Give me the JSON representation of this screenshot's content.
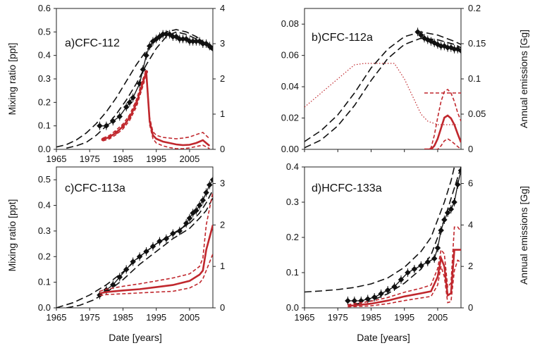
{
  "figure": {
    "xlabel": "Date [years]",
    "ylabel_left": "Mixing ratio [ppt]",
    "ylabel_right": "Annual emissions [Gg]"
  },
  "colors": {
    "observations": "#111111",
    "model": "#111111",
    "emissions": "#c0272d"
  },
  "chart_data": [
    {
      "type": "line",
      "title": "a)CFC-112",
      "xlim": [
        1965,
        2012
      ],
      "xticks": [
        1965,
        1975,
        1985,
        1995,
        2005
      ],
      "ylim": [
        0,
        0.6
      ],
      "yticks": [
        "0.0",
        "0.1",
        "0.2",
        "0.3",
        "0.4",
        "0.5",
        "0.6"
      ],
      "y2lim": [
        0,
        4
      ],
      "y2ticks": [
        "0",
        "1",
        "2",
        "3",
        "4"
      ],
      "series": [
        {
          "style": "obs",
          "axis": "left",
          "x": [
            1978,
            1980,
            1982,
            1984,
            1986,
            1987,
            1988,
            1990,
            1991,
            1992,
            1993,
            1994,
            1995,
            1996,
            1997,
            1998,
            1999,
            2000,
            2001,
            2002,
            2003,
            2004,
            2005,
            2006,
            2007,
            2008,
            2009,
            2010,
            2011,
            2012
          ],
          "y": [
            0.1,
            0.1,
            0.12,
            0.14,
            0.18,
            0.2,
            0.22,
            0.28,
            0.34,
            0.4,
            0.44,
            0.46,
            0.47,
            0.48,
            0.49,
            0.49,
            0.49,
            0.48,
            0.48,
            0.47,
            0.47,
            0.47,
            0.46,
            0.46,
            0.46,
            0.46,
            0.45,
            0.45,
            0.44,
            0.43
          ]
        },
        {
          "style": "model",
          "axis": "left",
          "x": [
            1965,
            1968,
            1971,
            1974,
            1977,
            1980,
            1983,
            1986,
            1989,
            1992,
            1995,
            1998,
            2001,
            2004,
            2007,
            2010,
            2012
          ],
          "y": [
            0.01,
            0.02,
            0.04,
            0.07,
            0.11,
            0.16,
            0.22,
            0.29,
            0.36,
            0.42,
            0.47,
            0.5,
            0.51,
            0.5,
            0.48,
            0.45,
            0.43
          ]
        },
        {
          "style": "model",
          "axis": "left",
          "x": [
            1968,
            1971,
            1974,
            1977,
            1980,
            1983,
            1986,
            1989,
            1992,
            1995,
            1998,
            2001,
            2004,
            2007,
            2010,
            2012
          ],
          "y": [
            0.005,
            0.015,
            0.03,
            0.06,
            0.1,
            0.15,
            0.21,
            0.28,
            0.36,
            0.43,
            0.48,
            0.5,
            0.49,
            0.47,
            0.44,
            0.42
          ]
        },
        {
          "style": "emis",
          "axis": "right",
          "x": [
            1979,
            1981,
            1983,
            1985,
            1987,
            1989,
            1991,
            1992,
            1993,
            1994,
            1995,
            1997,
            1999,
            2001,
            2003,
            2005,
            2007,
            2009,
            2011
          ],
          "y": [
            0.28,
            0.35,
            0.48,
            0.65,
            0.9,
            1.3,
            1.9,
            2.2,
            0.8,
            0.4,
            0.3,
            0.22,
            0.18,
            0.14,
            0.12,
            0.13,
            0.18,
            0.26,
            0.1
          ]
        },
        {
          "style": "emis_unc",
          "axis": "right",
          "x": [
            1979,
            1981,
            1983,
            1985,
            1987,
            1989,
            1991,
            1992,
            1993,
            1994,
            1995,
            1997,
            1999,
            2001,
            2003,
            2005,
            2007,
            2009,
            2011
          ],
          "y": [
            0.32,
            0.4,
            0.55,
            0.72,
            0.98,
            1.4,
            2.0,
            2.25,
            0.9,
            0.5,
            0.4,
            0.34,
            0.32,
            0.3,
            0.32,
            0.35,
            0.42,
            0.48,
            0.3
          ]
        },
        {
          "style": "emis_unc",
          "axis": "right",
          "x": [
            1979,
            1981,
            1983,
            1985,
            1987,
            1989,
            1991,
            1992,
            1993,
            1994,
            1995,
            1997,
            1999,
            2001,
            2003,
            2005,
            2007,
            2009,
            2011
          ],
          "y": [
            0.24,
            0.3,
            0.42,
            0.58,
            0.82,
            1.2,
            1.8,
            2.15,
            0.7,
            0.3,
            0.18,
            0.1,
            0.05,
            0.02,
            0.02,
            0.04,
            0.08,
            0.12,
            0.02
          ]
        }
      ]
    },
    {
      "type": "line",
      "title": "b)CFC-112a",
      "xlim": [
        1965,
        2012
      ],
      "xticks": [],
      "ylim": [
        0,
        0.09
      ],
      "yticks": [
        "0.00",
        "0.02",
        "0.04",
        "0.06",
        "0.08"
      ],
      "y2lim": [
        0,
        0.2
      ],
      "y2ticks": [
        "0",
        "0.05",
        "0.1",
        "0.15",
        "0.2"
      ],
      "series": [
        {
          "style": "obs",
          "axis": "left",
          "x": [
            1999,
            2000,
            2001,
            2002,
            2003,
            2004,
            2005,
            2006,
            2007,
            2008,
            2009,
            2010,
            2011,
            2012
          ],
          "y": [
            0.075,
            0.073,
            0.071,
            0.07,
            0.069,
            0.068,
            0.067,
            0.066,
            0.066,
            0.065,
            0.065,
            0.064,
            0.064,
            0.063
          ]
        },
        {
          "style": "model",
          "axis": "left",
          "x": [
            1965,
            1970,
            1975,
            1980,
            1985,
            1990,
            1995,
            2000,
            2005,
            2010,
            2012
          ],
          "y": [
            0.005,
            0.012,
            0.022,
            0.036,
            0.052,
            0.064,
            0.072,
            0.075,
            0.073,
            0.069,
            0.067
          ]
        },
        {
          "style": "model",
          "axis": "left",
          "x": [
            1965,
            1970,
            1975,
            1980,
            1985,
            1990,
            1995,
            2000,
            2005,
            2010,
            2012
          ],
          "y": [
            0.001,
            0.006,
            0.015,
            0.028,
            0.044,
            0.058,
            0.067,
            0.071,
            0.07,
            0.067,
            0.065
          ]
        },
        {
          "style": "dotted",
          "axis": "right",
          "x": [
            1965,
            1970,
            1975,
            1980,
            1983,
            1985,
            1992,
            1995,
            1998,
            2000,
            2002,
            2005,
            2008,
            2010,
            2011
          ],
          "y": [
            0.06,
            0.08,
            0.1,
            0.12,
            0.122,
            0.122,
            0.122,
            0.1,
            0.07,
            0.05,
            0.04,
            0.035,
            0.035,
            0.035,
            0.035
          ]
        },
        {
          "style": "emis",
          "axis": "right",
          "x": [
            2001,
            2002,
            2003,
            2004,
            2005,
            2006,
            2007,
            2008,
            2009,
            2010,
            2011,
            2012
          ],
          "y": [
            0.0,
            0.0,
            0.0,
            0.005,
            0.015,
            0.03,
            0.045,
            0.048,
            0.044,
            0.035,
            0.022,
            0.01
          ]
        },
        {
          "style": "emis_unc",
          "axis": "right",
          "x": [
            2001,
            2002,
            2003,
            2004,
            2005,
            2006,
            2007,
            2008,
            2009,
            2010,
            2011,
            2012
          ],
          "y": [
            0.0,
            0.0,
            0.002,
            0.02,
            0.045,
            0.068,
            0.082,
            0.085,
            0.08,
            0.068,
            0.052,
            0.04
          ]
        },
        {
          "style": "emis_unc",
          "axis": "right",
          "x": [
            2001,
            2002,
            2003,
            2004,
            2005,
            2006,
            2007,
            2008,
            2009,
            2010,
            2011,
            2012
          ],
          "y": [
            0.0,
            0.0,
            0.0,
            0.0,
            0.0,
            0.005,
            0.012,
            0.015,
            0.012,
            0.008,
            0.004,
            0.0
          ]
        },
        {
          "style": "emis_unc",
          "axis": "right",
          "x": [
            2001,
            2004,
            2007,
            2010,
            2012
          ],
          "y": [
            0.08,
            0.08,
            0.08,
            0.08,
            0.08
          ]
        }
      ]
    },
    {
      "type": "line",
      "title": "c)CFC-113a",
      "xlim": [
        1965,
        2012
      ],
      "xticks": [
        "1965",
        "1975",
        "1985",
        "1995",
        "2005"
      ],
      "ylim": [
        0,
        0.55
      ],
      "yticks": [
        "0.0",
        "0.1",
        "0.2",
        "0.3",
        "0.4",
        "0.5"
      ],
      "y2lim": [
        0,
        3.4
      ],
      "y2ticks": [
        "0",
        "1",
        "2",
        "3"
      ],
      "series": [
        {
          "style": "obs",
          "axis": "left",
          "x": [
            1978,
            1980,
            1982,
            1984,
            1986,
            1988,
            1990,
            1992,
            1994,
            1996,
            1998,
            2000,
            2002,
            2004,
            2005,
            2006,
            2007,
            2008,
            2009,
            2010,
            2011,
            2012
          ],
          "y": [
            0.05,
            0.07,
            0.09,
            0.12,
            0.15,
            0.18,
            0.2,
            0.22,
            0.24,
            0.26,
            0.27,
            0.29,
            0.3,
            0.33,
            0.35,
            0.37,
            0.38,
            0.4,
            0.42,
            0.45,
            0.48,
            0.5
          ]
        },
        {
          "style": "model",
          "axis": "left",
          "x": [
            1965,
            1970,
            1975,
            1980,
            1985,
            1990,
            1995,
            2000,
            2005,
            2008,
            2010,
            2012
          ],
          "y": [
            0.0,
            0.02,
            0.05,
            0.09,
            0.14,
            0.2,
            0.25,
            0.29,
            0.33,
            0.37,
            0.41,
            0.46
          ]
        },
        {
          "style": "model",
          "axis": "left",
          "x": [
            1968,
            1972,
            1976,
            1980,
            1985,
            1990,
            1995,
            2000,
            2005,
            2008,
            2010,
            2012
          ],
          "y": [
            0.0,
            0.01,
            0.03,
            0.06,
            0.11,
            0.17,
            0.22,
            0.27,
            0.31,
            0.35,
            0.38,
            0.43
          ]
        },
        {
          "style": "emis",
          "axis": "right",
          "x": [
            1978,
            1980,
            1985,
            1990,
            1995,
            2000,
            2005,
            2008,
            2009,
            2010,
            2011,
            2012
          ],
          "y": [
            0.35,
            0.38,
            0.42,
            0.45,
            0.5,
            0.55,
            0.65,
            0.8,
            0.9,
            1.4,
            1.7,
            2.0
          ]
        },
        {
          "style": "emis_unc",
          "axis": "right",
          "x": [
            1978,
            1980,
            1985,
            1990,
            1995,
            2000,
            2005,
            2008,
            2009,
            2010,
            2011,
            2012
          ],
          "y": [
            0.4,
            0.45,
            0.52,
            0.58,
            0.65,
            0.72,
            0.82,
            1.0,
            1.2,
            2.0,
            2.4,
            2.8
          ]
        },
        {
          "style": "emis_unc",
          "axis": "right",
          "x": [
            1978,
            1980,
            1985,
            1990,
            1995,
            2000,
            2005,
            2008,
            2009,
            2010,
            2011,
            2012
          ],
          "y": [
            0.3,
            0.32,
            0.34,
            0.36,
            0.38,
            0.4,
            0.48,
            0.6,
            0.7,
            0.9,
            1.1,
            1.3
          ]
        }
      ]
    },
    {
      "type": "line",
      "title": "d)HCFC-133a",
      "xlim": [
        1965,
        2012
      ],
      "xticks": [
        "1965",
        "1975",
        "1985",
        "1995",
        "2005"
      ],
      "ylim": [
        0,
        0.4
      ],
      "yticks": [
        "0.0",
        "0.1",
        "0.2",
        "0.3",
        "0.4"
      ],
      "y2lim": [
        0,
        6.8
      ],
      "y2ticks": [
        "0",
        "2",
        "4",
        "6"
      ],
      "series": [
        {
          "style": "obs",
          "axis": "left",
          "x": [
            1978,
            1980,
            1982,
            1984,
            1986,
            1988,
            1990,
            1992,
            1994,
            1996,
            1998,
            2000,
            2002,
            2004,
            2005,
            2006,
            2007,
            2008,
            2009,
            2010,
            2011,
            2012
          ],
          "y": [
            0.02,
            0.02,
            0.02,
            0.025,
            0.03,
            0.04,
            0.05,
            0.06,
            0.08,
            0.1,
            0.11,
            0.12,
            0.13,
            0.14,
            0.17,
            0.22,
            0.25,
            0.27,
            0.28,
            0.3,
            0.35,
            0.39
          ]
        },
        {
          "style": "model",
          "axis": "left",
          "x": [
            1965,
            1970,
            1975,
            1980,
            1985,
            1990,
            1995,
            2000,
            2003,
            2005,
            2007,
            2009,
            2010
          ],
          "y": [
            0.045,
            0.048,
            0.052,
            0.058,
            0.068,
            0.085,
            0.115,
            0.16,
            0.2,
            0.25,
            0.3,
            0.36,
            0.4
          ]
        },
        {
          "style": "model",
          "axis": "left",
          "x": [
            1980,
            1985,
            1990,
            1995,
            2000,
            2003,
            2005,
            2007,
            2009,
            2011,
            2012
          ],
          "y": [
            0.01,
            0.02,
            0.04,
            0.07,
            0.11,
            0.15,
            0.2,
            0.25,
            0.31,
            0.37,
            0.4
          ]
        },
        {
          "style": "emis",
          "axis": "right",
          "x": [
            1978,
            1980,
            1985,
            1990,
            1995,
            2000,
            2003,
            2005,
            2006,
            2007,
            2008,
            2009,
            2010,
            2011,
            2012
          ],
          "y": [
            0.1,
            0.12,
            0.2,
            0.35,
            0.55,
            0.7,
            0.8,
            1.5,
            2.4,
            2.0,
            0.6,
            0.7,
            2.8,
            2.8,
            2.8
          ]
        },
        {
          "style": "emis_unc",
          "axis": "right",
          "x": [
            1978,
            1980,
            1985,
            1990,
            1995,
            2000,
            2003,
            2005,
            2006,
            2007,
            2008,
            2009,
            2010,
            2011,
            2012
          ],
          "y": [
            0.15,
            0.2,
            0.32,
            0.5,
            0.75,
            0.95,
            1.1,
            1.9,
            2.8,
            2.6,
            1.0,
            1.2,
            3.9,
            3.9,
            3.7
          ]
        },
        {
          "style": "emis_unc",
          "axis": "right",
          "x": [
            1978,
            1980,
            1985,
            1990,
            1995,
            2000,
            2003,
            2005,
            2006,
            2007,
            2008,
            2009,
            2010,
            2011,
            2012
          ],
          "y": [
            0.05,
            0.06,
            0.1,
            0.2,
            0.35,
            0.48,
            0.55,
            1.1,
            2.0,
            1.5,
            0.25,
            0.3,
            1.8,
            2.3,
            2.2
          ]
        }
      ]
    }
  ]
}
